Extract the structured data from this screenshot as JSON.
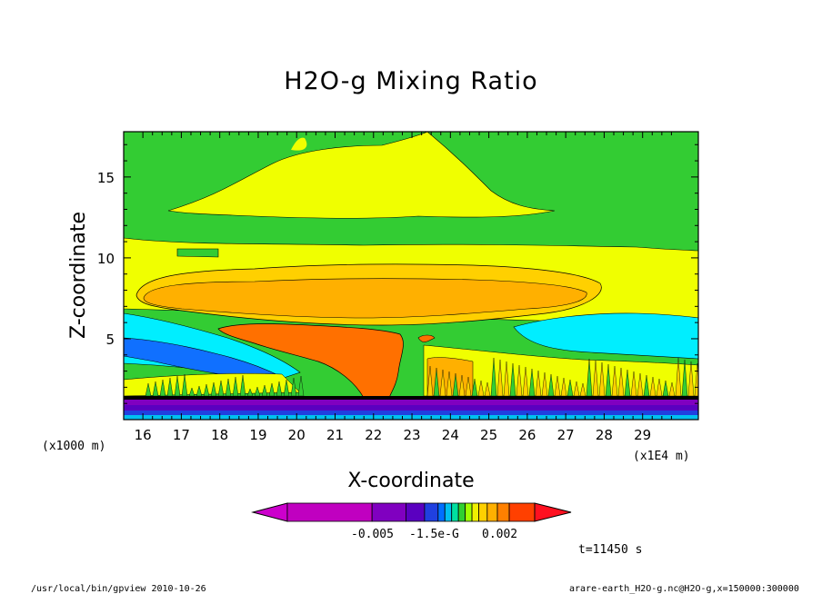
{
  "chart_data": {
    "type": "heatmap",
    "title": "H2O-g Mixing Ratio",
    "xlabel": "X-coordinate",
    "ylabel": "Z-coordinate",
    "x_unit_left": "(x1000 m)",
    "x_unit_right": "(x1E4 m)",
    "x_ticks": [
      "16",
      "17",
      "18",
      "19",
      "20",
      "21",
      "22",
      "23",
      "24",
      "25",
      "26",
      "27",
      "28",
      "29"
    ],
    "x_tick_values": [
      16,
      17,
      18,
      19,
      20,
      21,
      22,
      23,
      24,
      25,
      26,
      27,
      28,
      29
    ],
    "xlim": [
      15.5,
      30.45
    ],
    "y_ticks": [
      "5",
      "10",
      "15"
    ],
    "y_tick_values": [
      5,
      10,
      15
    ],
    "ylim": [
      0,
      17.8
    ],
    "colorbar": {
      "labels": [
        "-0.005",
        "-1.5e-G",
        "0.002"
      ],
      "colors": [
        "#cc00cc",
        "#c000c0",
        "#8000c0",
        "#5a00c0",
        "#2040e0",
        "#0070ff",
        "#00c0f0",
        "#00e0a0",
        "#30d030",
        "#a0ff00",
        "#f0f000",
        "#ffd000",
        "#ffb000",
        "#ff8000",
        "#ff4000",
        "#ff1020"
      ]
    },
    "time_label": "t=11450 s",
    "grid": false
  },
  "footer": {
    "left": "/usr/local/bin/gpview  2010-10-26",
    "right": "arare-earth_H2O-g.nc@H2O-g,x=150000:300000"
  }
}
